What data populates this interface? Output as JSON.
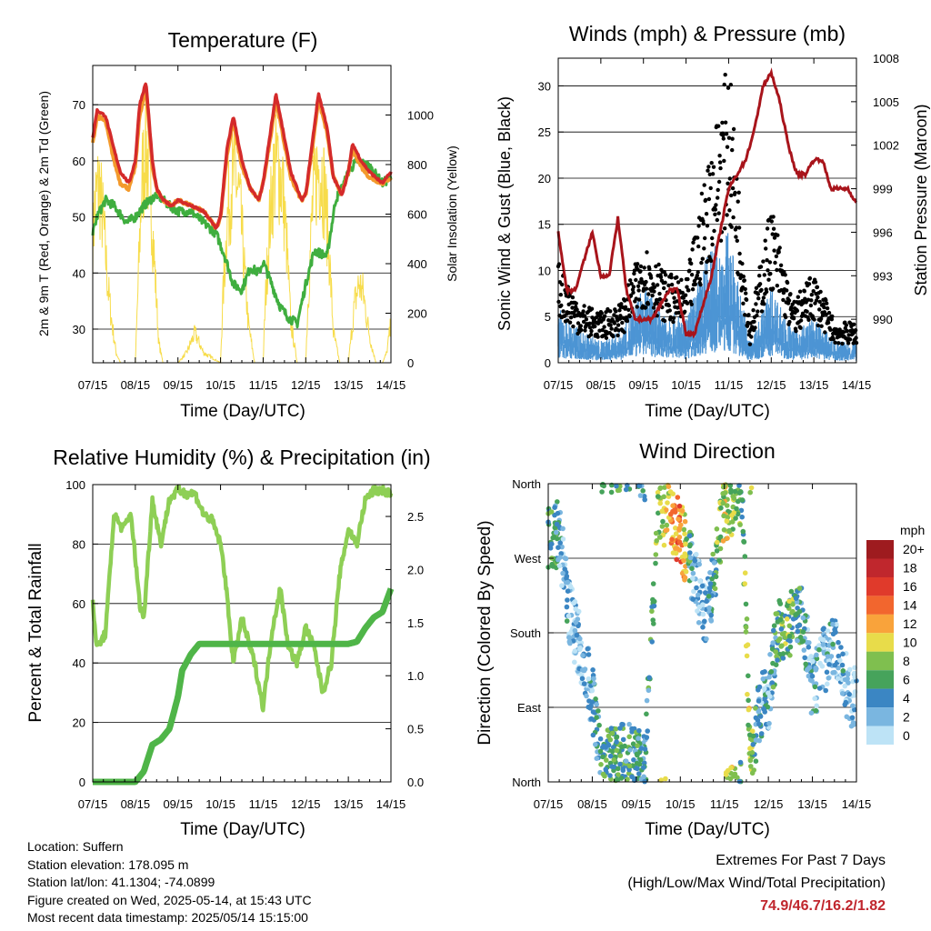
{
  "x_ticks": [
    "07/15",
    "08/15",
    "09/15",
    "10/15",
    "11/15",
    "12/15",
    "13/15",
    "14/15"
  ],
  "panels": {
    "temperature": {
      "title": "Temperature (F)",
      "ylabel_left": "2m & 9m T (Red, Orange) & 2m Td (Green)",
      "ylabel_right": "Solar Insolation (Yellow)",
      "xlabel": "Time (Day/UTC)",
      "yticks_left": [
        "30",
        "40",
        "50",
        "60",
        "70"
      ],
      "yticks_right": [
        "0",
        "200",
        "400",
        "600",
        "800",
        "1000"
      ]
    },
    "winds": {
      "title": "Winds (mph) & Pressure (mb)",
      "ylabel_left": "Sonic Wind & Gust (Blue, Black)",
      "ylabel_right": "Station Pressure (Maroon)",
      "xlabel": "Time (Day/UTC)",
      "yticks_left": [
        "0",
        "5",
        "10",
        "15",
        "20",
        "25",
        "30"
      ],
      "yticks_right": [
        "990",
        "993",
        "996",
        "999",
        "1002",
        "1005",
        "1008"
      ]
    },
    "humidity": {
      "title": "Relative Humidity (%) & Precipitation (in)",
      "ylabel_left": "Percent & Total Rainfall",
      "xlabel": "Time (Day/UTC)",
      "yticks_left": [
        "0",
        "20",
        "40",
        "60",
        "80",
        "100"
      ],
      "yticks_right": [
        "0.0",
        "0.5",
        "1.0",
        "1.5",
        "2.0",
        "2.5"
      ]
    },
    "direction": {
      "title": "Wind Direction",
      "ylabel_left": "Direction (Colored By Speed)",
      "xlabel": "Time (Day/UTC)",
      "yticks_left": [
        "North",
        "East",
        "South",
        "West",
        "North"
      ],
      "legend_title": "mph",
      "legend_labels": [
        "20+",
        "18",
        "16",
        "14",
        "12",
        "10",
        "8",
        "6",
        "4",
        "2",
        "0"
      ],
      "legend_colors": [
        "#9e1b1f",
        "#c0272d",
        "#e03a2b",
        "#f2662e",
        "#f9a33b",
        "#e8dc4a",
        "#7fbf4f",
        "#46a35b",
        "#3b86c3",
        "#7ab6e0",
        "#bde3f6"
      ]
    }
  },
  "colors": {
    "temp_2m": "#d42a2a",
    "temp_9m": "#f39a2c",
    "dewpoint": "#3fae3f",
    "solar": "#f7dc4a",
    "wind": "#4d95d4",
    "gust": "#000000",
    "pressure": "#a8141b",
    "rh": "#8ecf55",
    "precip": "#4fb548",
    "extremes": "#c0262d"
  },
  "footer": {
    "location": "Location: Suffern",
    "elevation": "Station elevation: 178.095 m",
    "latlon": "Station lat/lon: 41.1304; -74.0899",
    "created": "Figure created on Wed, 2025-05-14, at 15:43 UTC",
    "recent": "Most recent data timestamp: 2025/05/14 15:15:00",
    "extremes_title": "Extremes For Past 7 Days",
    "extremes_sub": "(High/Low/Max Wind/Total Precipitation)",
    "extremes_values": "74.9/46.7/16.2/1.82"
  },
  "chart_data": [
    {
      "type": "line",
      "title": "Temperature (F)",
      "xlabel": "Time (Day/UTC)",
      "ylabel": "2m & 9m T (Red, Orange) & 2m Td (Green)",
      "y2label": "Solar Insolation (Yellow)",
      "ylim": [
        24,
        77
      ],
      "y2lim": [
        0,
        1200
      ],
      "x_range_days": [
        0,
        7
      ],
      "series": [
        {
          "name": "2m T",
          "axis": "left",
          "x": [
            0,
            0.1,
            0.3,
            0.5,
            0.65,
            0.85,
            1.0,
            1.1,
            1.25,
            1.4,
            1.5,
            1.65,
            1.85,
            2.0,
            2.3,
            2.6,
            2.9,
            3.0,
            3.15,
            3.3,
            3.5,
            3.7,
            3.9,
            4.0,
            4.15,
            4.3,
            4.5,
            4.65,
            4.9,
            5.0,
            5.15,
            5.3,
            5.5,
            5.65,
            5.85,
            6.0,
            6.1,
            6.3,
            6.5,
            6.8,
            7.0
          ],
          "y": [
            64,
            69,
            68,
            62,
            58,
            56,
            60,
            70,
            74,
            60,
            55,
            53,
            52,
            53,
            52,
            51,
            48,
            50,
            62,
            68,
            60,
            55,
            53,
            56,
            64,
            72,
            64,
            58,
            53,
            54,
            63,
            72,
            66,
            57,
            54,
            58,
            63,
            60,
            58,
            56,
            58
          ]
        },
        {
          "name": "9m T",
          "axis": "left",
          "x": [
            0,
            0.1,
            0.3,
            0.5,
            0.65,
            0.85,
            1.0,
            1.1,
            1.25,
            1.4,
            1.5,
            1.65,
            1.85,
            2.0,
            2.3,
            2.6,
            2.9,
            3.0,
            3.15,
            3.3,
            3.5,
            3.7,
            3.9,
            4.0,
            4.15,
            4.3,
            4.5,
            4.65,
            4.9,
            5.0,
            5.15,
            5.3,
            5.5,
            5.65,
            5.85,
            6.0,
            6.1,
            6.3,
            6.5,
            6.8,
            7.0
          ],
          "y": [
            63,
            68,
            67,
            60,
            56,
            55,
            59,
            68,
            73,
            59,
            55,
            53,
            52,
            53,
            52,
            51,
            48,
            50,
            61,
            67,
            59,
            55,
            53,
            56,
            63,
            71,
            63,
            57,
            53,
            54,
            62,
            71,
            65,
            57,
            54,
            58,
            62,
            59,
            57,
            56,
            57
          ]
        },
        {
          "name": "2m Td",
          "axis": "left",
          "x": [
            0,
            0.1,
            0.3,
            0.5,
            0.8,
            1.0,
            1.2,
            1.5,
            1.8,
            2.0,
            2.3,
            2.6,
            2.9,
            3.1,
            3.3,
            3.5,
            3.7,
            3.9,
            4.0,
            4.2,
            4.4,
            4.6,
            4.8,
            5.0,
            5.2,
            5.5,
            5.7,
            5.9,
            6.0,
            6.2,
            6.5,
            6.8,
            7.0
          ],
          "y": [
            47,
            50,
            53,
            52,
            49,
            50,
            52,
            54,
            52,
            51,
            51,
            49,
            47,
            43,
            38,
            37,
            41,
            40,
            42,
            38,
            34,
            32,
            31,
            38,
            44,
            43,
            53,
            56,
            58,
            60,
            59,
            56,
            57
          ]
        },
        {
          "name": "Solar Insolation",
          "axis": "right",
          "x": [
            0,
            0.05,
            0.15,
            0.25,
            0.35,
            0.45,
            0.55,
            0.65,
            0.8,
            1.0,
            1.05,
            1.15,
            1.25,
            1.35,
            1.45,
            1.55,
            1.65,
            1.8,
            2.0,
            2.2,
            2.4,
            2.6,
            3.0,
            3.05,
            3.15,
            3.25,
            3.35,
            3.45,
            3.55,
            3.65,
            3.8,
            4.0,
            4.05,
            4.15,
            4.25,
            4.35,
            4.45,
            4.55,
            4.65,
            4.8,
            5.0,
            5.05,
            5.15,
            5.25,
            5.35,
            5.45,
            5.55,
            5.65,
            5.8,
            6.0,
            6.05,
            6.15,
            6.25,
            6.35,
            6.45,
            6.55,
            6.65,
            6.8,
            6.9,
            7.0
          ],
          "y": [
            600,
            800,
            900,
            700,
            400,
            200,
            50,
            0,
            0,
            0,
            300,
            900,
            1100,
            900,
            500,
            100,
            0,
            0,
            0,
            50,
            150,
            50,
            0,
            300,
            700,
            900,
            950,
            800,
            500,
            200,
            0,
            0,
            300,
            700,
            950,
            1000,
            900,
            600,
            200,
            0,
            0,
            300,
            750,
            950,
            1000,
            850,
            550,
            150,
            0,
            0,
            100,
            300,
            400,
            350,
            200,
            80,
            0,
            0,
            50,
            200
          ]
        }
      ]
    },
    {
      "type": "scatter",
      "title": "Winds (mph) & Pressure (mb)",
      "xlabel": "Time (Day/UTC)",
      "ylabel": "Sonic Wind & Gust (Blue, Black)",
      "y2label": "Station Pressure (Maroon)",
      "ylim": [
        0,
        33
      ],
      "y2lim": [
        987,
        1008
      ],
      "x_range_days": [
        0,
        7
      ],
      "series": [
        {
          "name": "Sonic Wind",
          "x": [
            0,
            0.5,
            1.0,
            1.5,
            2.0,
            2.5,
            3.0,
            3.5,
            4.0,
            4.5,
            5.0,
            5.5,
            6.0,
            6.5,
            7.0
          ],
          "y": [
            5,
            3,
            2,
            3,
            7,
            5,
            4,
            10,
            12,
            2,
            7,
            3,
            4,
            2,
            2
          ]
        },
        {
          "name": "Gust",
          "x": [
            0,
            0.5,
            1.0,
            1.5,
            2.0,
            2.5,
            3.0,
            3.5,
            4.0,
            4.5,
            5.0,
            5.5,
            6.0,
            6.5,
            7.0
          ],
          "y": [
            10,
            6,
            5,
            6,
            12,
            9,
            8,
            20,
            30,
            4,
            16,
            6,
            9,
            4,
            4
          ]
        },
        {
          "name": "Station Pressure",
          "x": [
            0,
            0.2,
            0.4,
            0.6,
            0.8,
            1.0,
            1.2,
            1.4,
            1.6,
            1.8,
            2.0,
            2.2,
            2.4,
            2.6,
            2.8,
            3.0,
            3.2,
            3.4,
            3.6,
            3.8,
            4.0,
            4.2,
            4.4,
            4.6,
            4.8,
            5.0,
            5.2,
            5.4,
            5.6,
            5.8,
            6.0,
            6.2,
            6.4,
            6.6,
            6.8,
            7.0
          ],
          "y": [
            996,
            992,
            992,
            994,
            996,
            993,
            993,
            997,
            992,
            990,
            990,
            990,
            991,
            992,
            992,
            989,
            989,
            991,
            993,
            996,
            999,
            1000,
            1001,
            1003,
            1006,
            1007,
            1005,
            1002,
            1000,
            1000,
            1001,
            1001,
            999,
            999,
            999,
            998
          ]
        }
      ]
    },
    {
      "type": "line",
      "title": "Relative Humidity (%) & Precipitation (in)",
      "xlabel": "Time (Day/UTC)",
      "ylabel": "Percent & Total Rainfall",
      "ylim": [
        0,
        100
      ],
      "y2lim": [
        0,
        2.8
      ],
      "x_range_days": [
        0,
        7
      ],
      "series": [
        {
          "name": "Relative Humidity",
          "axis": "left",
          "x": [
            0,
            0.1,
            0.3,
            0.5,
            0.7,
            0.9,
            1.1,
            1.2,
            1.4,
            1.6,
            1.8,
            2.0,
            2.2,
            2.4,
            2.6,
            2.8,
            3.0,
            3.1,
            3.3,
            3.5,
            3.6,
            3.8,
            4.0,
            4.2,
            4.4,
            4.6,
            4.8,
            5.0,
            5.2,
            5.4,
            5.6,
            5.8,
            6.0,
            6.2,
            6.4,
            6.6,
            6.8,
            7.0
          ],
          "y": [
            60,
            45,
            50,
            90,
            85,
            90,
            60,
            55,
            95,
            80,
            95,
            98,
            97,
            97,
            90,
            88,
            80,
            70,
            40,
            55,
            50,
            40,
            25,
            50,
            65,
            45,
            40,
            52,
            45,
            30,
            40,
            70,
            85,
            80,
            95,
            98,
            98,
            97
          ]
        },
        {
          "name": "Total Rainfall",
          "axis": "right",
          "x": [
            0,
            0.5,
            1.0,
            1.2,
            1.4,
            1.6,
            1.8,
            2.0,
            2.1,
            2.3,
            2.5,
            2.7,
            3.0,
            3.5,
            4.0,
            4.5,
            5.0,
            5.5,
            6.0,
            6.2,
            6.4,
            6.6,
            6.8,
            7.0
          ],
          "y": [
            0,
            0,
            0,
            0.1,
            0.35,
            0.4,
            0.5,
            0.8,
            1.05,
            1.2,
            1.3,
            1.3,
            1.3,
            1.3,
            1.3,
            1.3,
            1.3,
            1.3,
            1.3,
            1.32,
            1.45,
            1.55,
            1.6,
            1.82
          ]
        }
      ]
    },
    {
      "type": "scatter",
      "title": "Wind Direction",
      "xlabel": "Time (Day/UTC)",
      "ylabel": "Direction (Colored By Speed)",
      "y_categories": [
        "North",
        "East",
        "South",
        "West",
        "North"
      ],
      "ylim_degrees": [
        0,
        360
      ],
      "x_range_days": [
        0,
        7
      ],
      "color_scale_mph": [
        0,
        20
      ],
      "series": [
        {
          "name": "Wind Direction",
          "x": [
            0.1,
            0.2,
            0.3,
            0.5,
            0.8,
            1.0,
            1.2,
            1.4,
            1.6,
            2.0,
            2.2,
            2.5,
            2.8,
            3.0,
            3.3,
            3.6,
            4.0,
            4.2,
            4.4,
            4.6,
            4.8,
            5.0,
            5.2,
            5.5,
            5.8,
            6.0,
            6.2,
            6.5,
            6.8,
            7.0
          ],
          "dir": [
            290,
            300,
            280,
            200,
            150,
            100,
            30,
            25,
            30,
            30,
            20,
            330,
            320,
            300,
            250,
            200,
            330,
            340,
            350,
            10,
            90,
            100,
            180,
            190,
            200,
            110,
            140,
            170,
            110,
            100
          ],
          "speed": [
            6,
            4,
            3,
            2,
            2,
            3,
            5,
            6,
            6,
            5,
            4,
            8,
            12,
            14,
            2,
            2,
            10,
            8,
            6,
            9,
            3,
            3,
            6,
            7,
            4,
            3,
            2,
            3,
            2,
            2
          ]
        }
      ]
    }
  ]
}
